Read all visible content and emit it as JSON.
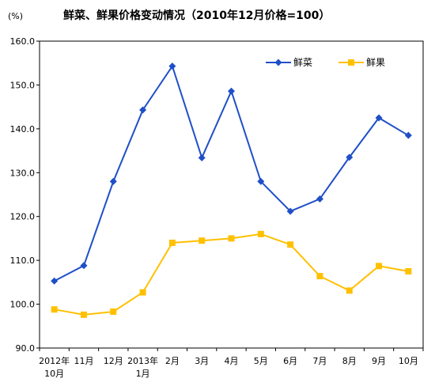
{
  "chart_data": {
    "type": "line",
    "title": "鲜菜、鲜果价格变动情况（2010年12月价格=100）",
    "unit_label": "(%)",
    "ylim": [
      90,
      160
    ],
    "yticks": [
      "90.0",
      "100.0",
      "110.0",
      "120.0",
      "130.0",
      "140.0",
      "150.0",
      "160.0"
    ],
    "categories": [
      {
        "line1": "2012年",
        "line2": "10月"
      },
      {
        "line1": "11月",
        "line2": ""
      },
      {
        "line1": "12月",
        "line2": ""
      },
      {
        "line1": "2013年",
        "line2": "1月"
      },
      {
        "line1": "2月",
        "line2": ""
      },
      {
        "line1": "3月",
        "line2": ""
      },
      {
        "line1": "4月",
        "line2": ""
      },
      {
        "line1": "5月",
        "line2": ""
      },
      {
        "line1": "6月",
        "line2": ""
      },
      {
        "line1": "7月",
        "line2": ""
      },
      {
        "line1": "8月",
        "line2": ""
      },
      {
        "line1": "9月",
        "line2": ""
      },
      {
        "line1": "10月",
        "line2": ""
      }
    ],
    "series": [
      {
        "name": "鲜菜",
        "color": "#1F4FC8",
        "marker": "diamond",
        "values": [
          105.3,
          108.8,
          128.0,
          144.3,
          154.3,
          133.4,
          148.6,
          128.0,
          121.2,
          124.0,
          133.5,
          142.5,
          138.5
        ]
      },
      {
        "name": "鲜果",
        "color": "#FFC000",
        "marker": "square",
        "values": [
          98.8,
          97.6,
          98.3,
          102.7,
          114.0,
          114.5,
          115.0,
          116.0,
          113.6,
          106.4,
          103.1,
          108.7,
          107.5
        ]
      }
    ],
    "grid": false,
    "legend": "top-right"
  }
}
